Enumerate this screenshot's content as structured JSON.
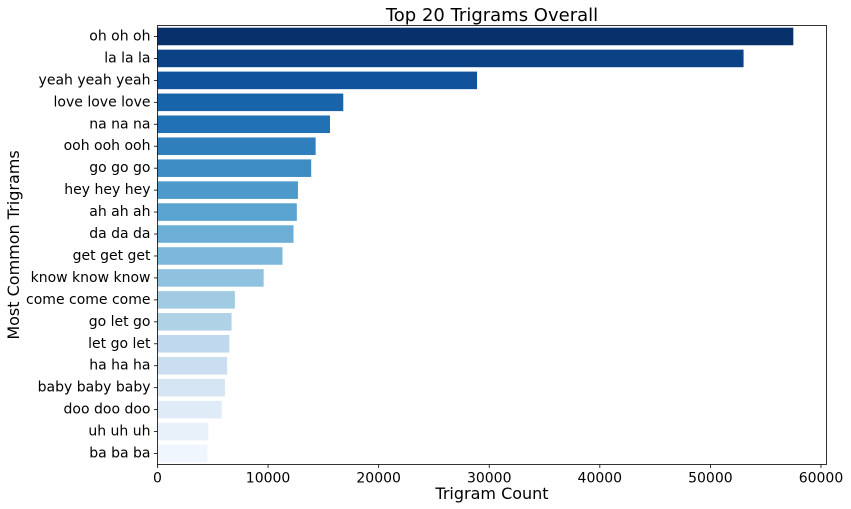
{
  "chart_data": {
    "type": "bar",
    "orientation": "horizontal",
    "title": "Top 20 Trigrams Overall",
    "xlabel": "Trigram Count",
    "ylabel": "Most Common Trigrams",
    "xlim": [
      0,
      60500
    ],
    "x_ticks": [
      0,
      10000,
      20000,
      30000,
      40000,
      50000,
      60000
    ],
    "x_tick_labels": [
      "0",
      "10000",
      "20000",
      "30000",
      "40000",
      "50000",
      "60000"
    ],
    "grid": false,
    "legend": "none",
    "colormap": "Blues (dark to light)",
    "categories": [
      "oh oh oh",
      "la la la",
      "yeah yeah yeah",
      "love love love",
      "na na na",
      "ooh ooh ooh",
      "go go go",
      "hey hey hey",
      "ah ah ah",
      "da da da",
      "get get get",
      "know know know",
      "come come come",
      "go let go",
      "let go let",
      "ha ha ha",
      "baby baby baby",
      "doo doo doo",
      "uh uh uh",
      "ba ba ba"
    ],
    "values": [
      57500,
      53000,
      28900,
      16800,
      15600,
      14300,
      13900,
      12700,
      12600,
      12300,
      11300,
      9600,
      7000,
      6700,
      6500,
      6300,
      6100,
      5800,
      4600,
      4500
    ],
    "colors": [
      "#08306b",
      "#0b4285",
      "#11539b",
      "#1864aa",
      "#2171b5",
      "#2f7fbc",
      "#3d8dc4",
      "#4d99ca",
      "#5ba3d0",
      "#6caed6",
      "#7db8da",
      "#8fc2de",
      "#a0cbe2",
      "#b0d2e7",
      "#bfd8ed",
      "#cbdef1",
      "#d5e5f4",
      "#dfebf7",
      "#e8f1fa",
      "#f0f6fd"
    ]
  }
}
